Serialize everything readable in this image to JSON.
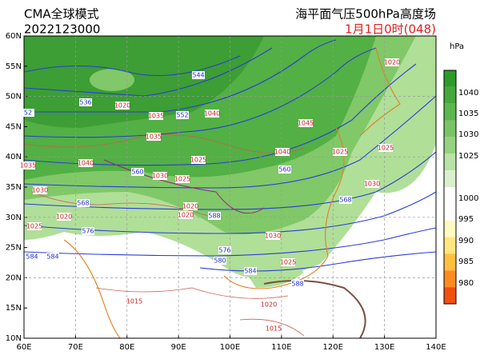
{
  "header": {
    "model": "CMA全球模式",
    "init_time": "2022123000",
    "title": "海平面气压500hPa高度场",
    "valid_time": "1月1日0时(048)"
  },
  "lat_labels": [
    "60N",
    "55N",
    "50N",
    "45N",
    "40N",
    "35N",
    "30N",
    "25N",
    "20N",
    "15N",
    "10N"
  ],
  "lon_labels": [
    "60E",
    "70E",
    "80E",
    "90E",
    "100E",
    "110E",
    "120E",
    "130E",
    "140E"
  ],
  "colorbar": {
    "unit": "hPa",
    "labels": [
      "1040",
      "1035",
      "1030",
      "1025",
      "1000",
      "995",
      "990",
      "985",
      "980"
    ]
  },
  "height_labels": [
    "536",
    "544",
    "552",
    "52",
    "560",
    "560",
    "568",
    "568",
    "576",
    "576",
    "584",
    "584",
    "580",
    "584",
    "588",
    "588"
  ],
  "pressure_labels": [
    "1020",
    "1035",
    "1040",
    "1035",
    "1045",
    "1040",
    "1035",
    "1040",
    "1025",
    "1030",
    "1025",
    "1030",
    "1020",
    "1025",
    "1020",
    "1020",
    "1030",
    "1025",
    "1020",
    "1025",
    "1025",
    "1030",
    "1015",
    "1020",
    "1015"
  ]
}
